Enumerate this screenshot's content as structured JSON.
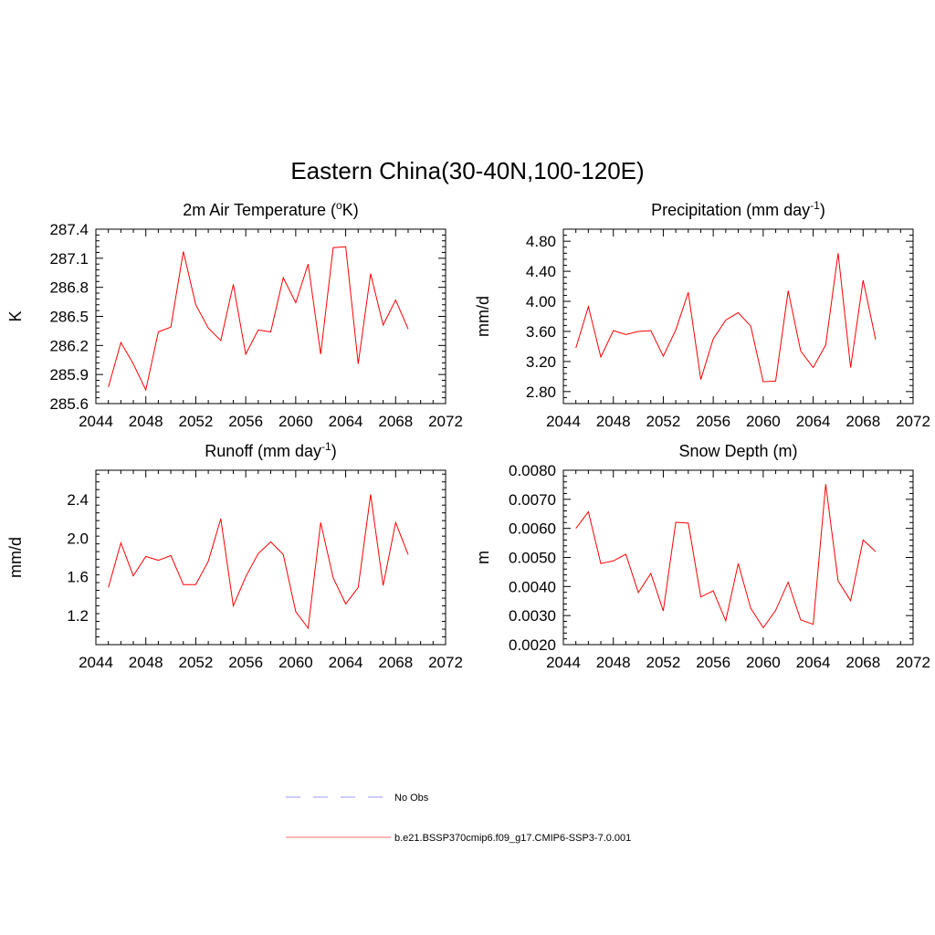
{
  "figure": {
    "title": "Eastern China(30-40N,100-120E)",
    "legend": [
      {
        "label": "No Obs",
        "color": "#9a9aff",
        "dash": "dashed"
      },
      {
        "label": "b.e21.BSSP370cmip6.f09_g17.CMIP6-SSP3-7.0.001",
        "color": "#ff6b6b",
        "dash": "solid"
      }
    ],
    "series_color": "#ff0000"
  },
  "chart_data": [
    {
      "type": "line",
      "title": "2m Air Temperature (°K)",
      "ylabel": "K",
      "xlim": [
        2044,
        2072
      ],
      "ylim": [
        285.6,
        287.4
      ],
      "xticks": [
        2044,
        2048,
        2052,
        2056,
        2060,
        2064,
        2068,
        2072
      ],
      "xtick_labels": [
        "2044",
        "2048",
        "2052",
        "2056",
        "2060",
        "2064",
        "2068",
        "2072"
      ],
      "yticks": [
        285.6,
        285.9,
        286.2,
        286.5,
        286.8,
        287.1,
        287.4
      ],
      "ytick_labels": [
        "285.6",
        "285.9",
        "286.2",
        "286.5",
        "286.8",
        "287.1",
        "287.4"
      ],
      "x": [
        2045,
        2046,
        2047,
        2048,
        2049,
        2050,
        2051,
        2052,
        2053,
        2054,
        2055,
        2056,
        2057,
        2058,
        2059,
        2060,
        2061,
        2062,
        2063,
        2064,
        2065,
        2066,
        2067,
        2068,
        2069
      ],
      "y": [
        285.77,
        286.23,
        286.01,
        285.74,
        286.34,
        286.39,
        287.17,
        286.62,
        286.38,
        286.25,
        286.83,
        286.11,
        286.36,
        286.34,
        286.9,
        286.64,
        287.04,
        286.11,
        287.21,
        287.22,
        286.01,
        286.94,
        286.41,
        286.67,
        286.37
      ]
    },
    {
      "type": "line",
      "title": "Precipitation (mm day-1)",
      "ylabel": "mm/d",
      "xlim": [
        2044,
        2072
      ],
      "ylim": [
        2.64,
        4.96
      ],
      "xticks": [
        2044,
        2048,
        2052,
        2056,
        2060,
        2064,
        2068,
        2072
      ],
      "xtick_labels": [
        "2044",
        "2048",
        "2052",
        "2056",
        "2060",
        "2064",
        "2068",
        "2072"
      ],
      "yticks": [
        2.8,
        3.2,
        3.6,
        4.0,
        4.4,
        4.8
      ],
      "ytick_labels": [
        "2.80",
        "3.20",
        "3.60",
        "4.00",
        "4.40",
        "4.80"
      ],
      "x": [
        2045,
        2046,
        2047,
        2048,
        2049,
        2050,
        2051,
        2052,
        2053,
        2054,
        2055,
        2056,
        2057,
        2058,
        2059,
        2060,
        2061,
        2062,
        2063,
        2064,
        2065,
        2066,
        2067,
        2068,
        2069
      ],
      "y": [
        3.38,
        3.93,
        3.26,
        3.61,
        3.56,
        3.6,
        3.61,
        3.27,
        3.62,
        4.12,
        2.96,
        3.5,
        3.75,
        3.85,
        3.67,
        2.93,
        2.94,
        4.14,
        3.34,
        3.12,
        3.42,
        4.64,
        3.12,
        4.28,
        3.49
      ]
    },
    {
      "type": "line",
      "title": "Runoff (mm day-1)",
      "ylabel": "mm/d",
      "xlim": [
        2044,
        2072
      ],
      "ylim": [
        0.9,
        2.7
      ],
      "xticks": [
        2044,
        2048,
        2052,
        2056,
        2060,
        2064,
        2068,
        2072
      ],
      "xtick_labels": [
        "2044",
        "2048",
        "2052",
        "2056",
        "2060",
        "2064",
        "2068",
        "2072"
      ],
      "yticks": [
        1.2,
        1.6,
        2.0,
        2.4
      ],
      "ytick_labels": [
        "1.2",
        "1.6",
        "2.0",
        "2.4"
      ],
      "x": [
        2045,
        2046,
        2047,
        2048,
        2049,
        2050,
        2051,
        2052,
        2053,
        2054,
        2055,
        2056,
        2057,
        2058,
        2059,
        2060,
        2061,
        2062,
        2063,
        2064,
        2065,
        2066,
        2067,
        2068,
        2069
      ],
      "y": [
        1.49,
        1.95,
        1.61,
        1.81,
        1.77,
        1.82,
        1.52,
        1.52,
        1.76,
        2.2,
        1.3,
        1.6,
        1.84,
        1.96,
        1.83,
        1.24,
        1.07,
        2.16,
        1.59,
        1.32,
        1.49,
        2.45,
        1.51,
        2.16,
        1.83
      ]
    },
    {
      "type": "line",
      "title": "Snow Depth (m)",
      "ylabel": "m",
      "xlim": [
        2044,
        2072
      ],
      "ylim": [
        0.002,
        0.008
      ],
      "xticks": [
        2044,
        2048,
        2052,
        2056,
        2060,
        2064,
        2068,
        2072
      ],
      "xtick_labels": [
        "2044",
        "2048",
        "2052",
        "2056",
        "2060",
        "2064",
        "2068",
        "2072"
      ],
      "yticks": [
        0.002,
        0.003,
        0.004,
        0.005,
        0.006,
        0.007,
        0.008
      ],
      "ytick_labels": [
        "0.0020",
        "0.0030",
        "0.0040",
        "0.0050",
        "0.0060",
        "0.0070",
        "0.0080"
      ],
      "x": [
        2045,
        2046,
        2047,
        2048,
        2049,
        2050,
        2051,
        2052,
        2053,
        2054,
        2055,
        2056,
        2057,
        2058,
        2059,
        2060,
        2061,
        2062,
        2063,
        2064,
        2065,
        2066,
        2067,
        2068,
        2069
      ],
      "y": [
        0.006,
        0.00657,
        0.00479,
        0.00488,
        0.00511,
        0.00379,
        0.00445,
        0.00316,
        0.00621,
        0.00618,
        0.00364,
        0.00385,
        0.00282,
        0.00479,
        0.00325,
        0.00258,
        0.00318,
        0.00415,
        0.00285,
        0.0027,
        0.00752,
        0.00419,
        0.00351,
        0.0056,
        0.0052
      ]
    }
  ]
}
